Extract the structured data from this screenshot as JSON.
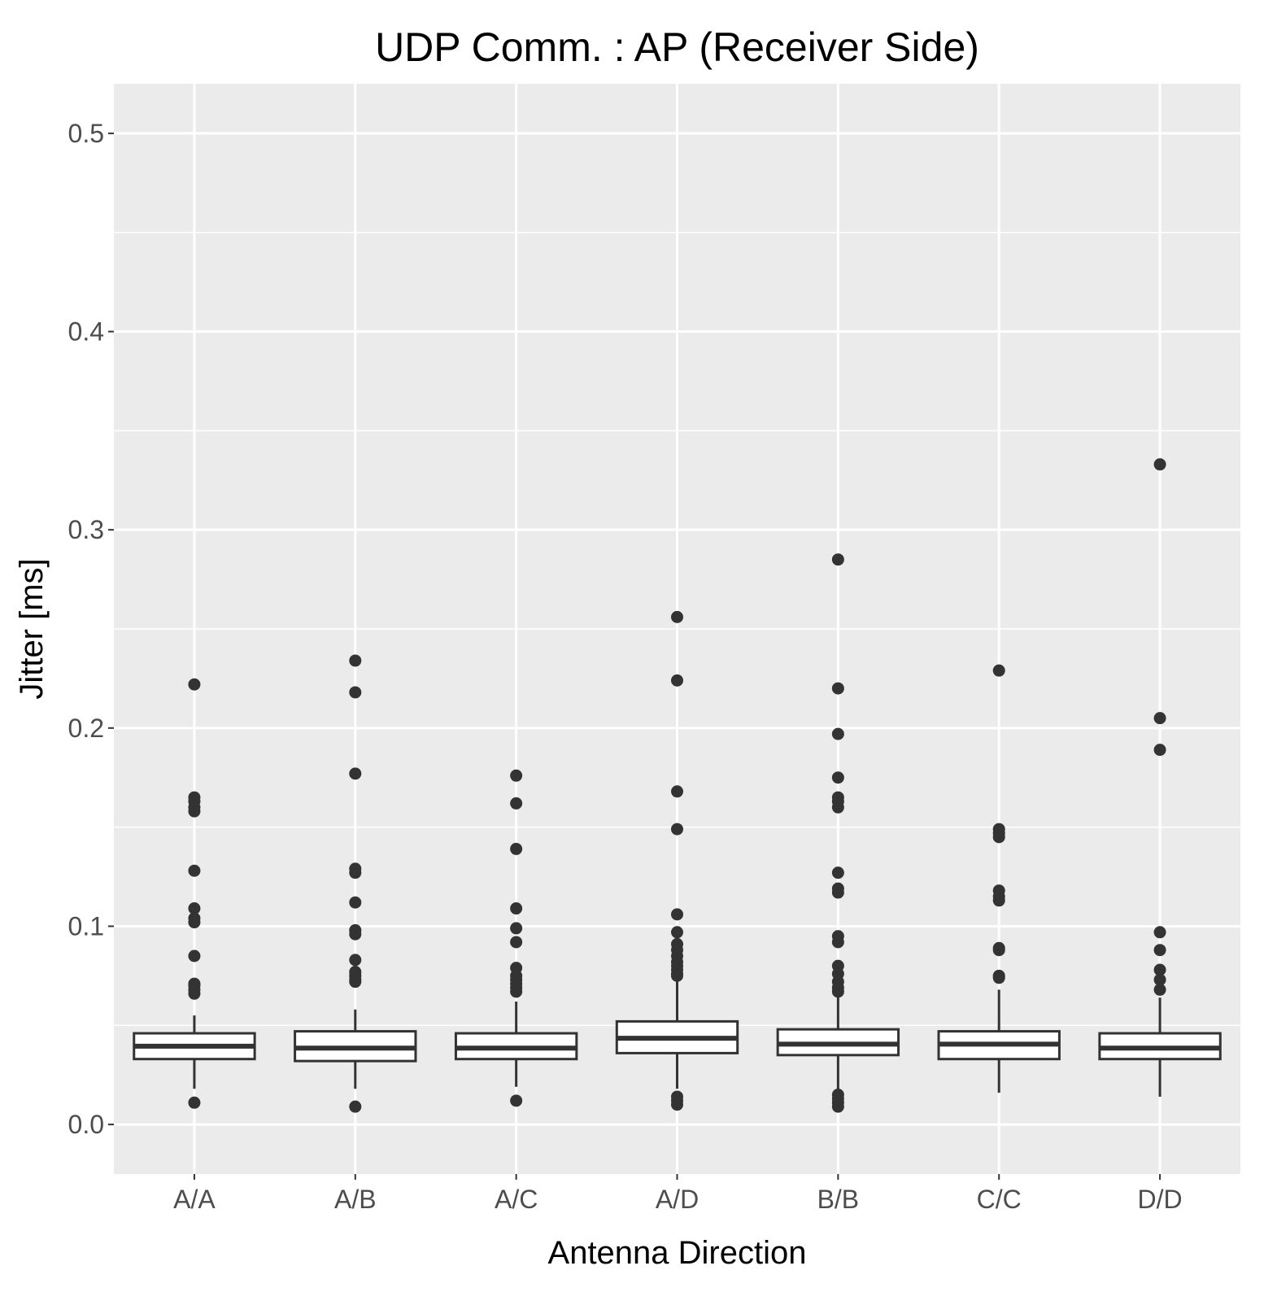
{
  "chart_data": {
    "type": "boxplot",
    "title": "UDP Comm. : AP (Receiver Side)",
    "xlabel": "Antenna Direction",
    "ylabel": "Jitter [ms]",
    "ylim": [
      -0.025,
      0.525
    ],
    "yticks": [
      0.0,
      0.1,
      0.2,
      0.3,
      0.4,
      0.5
    ],
    "ytick_labels": [
      "0.0",
      "0.1",
      "0.2",
      "0.3",
      "0.4",
      "0.5"
    ],
    "grid": true,
    "colors": {
      "panel_background": "#ebebeb",
      "grid": "#ffffff",
      "box_fill": "#ffffff",
      "box_line": "#333333",
      "outlier": "#333333"
    },
    "categories": [
      "A/A",
      "A/B",
      "A/C",
      "A/D",
      "B/B",
      "C/C",
      "D/D"
    ],
    "boxes": [
      {
        "category": "A/A",
        "lower_whisker": 0.018,
        "q1": 0.033,
        "median": 0.0395,
        "q3": 0.046,
        "upper_whisker": 0.055,
        "outliers": [
          0.222,
          0.165,
          0.163,
          0.16,
          0.158,
          0.128,
          0.109,
          0.104,
          0.102,
          0.085,
          0.071,
          0.07,
          0.068,
          0.066,
          0.011
        ]
      },
      {
        "category": "A/B",
        "lower_whisker": 0.018,
        "q1": 0.032,
        "median": 0.0385,
        "q3": 0.047,
        "upper_whisker": 0.058,
        "outliers": [
          0.234,
          0.218,
          0.177,
          0.129,
          0.127,
          0.112,
          0.098,
          0.096,
          0.083,
          0.077,
          0.075,
          0.073,
          0.072,
          0.009
        ]
      },
      {
        "category": "A/C",
        "lower_whisker": 0.019,
        "q1": 0.033,
        "median": 0.0385,
        "q3": 0.046,
        "upper_whisker": 0.062,
        "outliers": [
          0.176,
          0.162,
          0.139,
          0.109,
          0.099,
          0.092,
          0.079,
          0.075,
          0.073,
          0.071,
          0.069,
          0.067,
          0.012
        ]
      },
      {
        "category": "A/D",
        "lower_whisker": 0.018,
        "q1": 0.036,
        "median": 0.0435,
        "q3": 0.052,
        "upper_whisker": 0.073,
        "outliers": [
          0.256,
          0.224,
          0.168,
          0.149,
          0.106,
          0.097,
          0.091,
          0.088,
          0.085,
          0.082,
          0.08,
          0.078,
          0.076,
          0.075,
          0.014,
          0.012,
          0.01
        ]
      },
      {
        "category": "B/B",
        "lower_whisker": 0.017,
        "q1": 0.035,
        "median": 0.0405,
        "q3": 0.048,
        "upper_whisker": 0.066,
        "outliers": [
          0.285,
          0.22,
          0.197,
          0.175,
          0.165,
          0.163,
          0.16,
          0.127,
          0.119,
          0.117,
          0.095,
          0.092,
          0.08,
          0.076,
          0.072,
          0.069,
          0.067,
          0.015,
          0.013,
          0.011,
          0.009
        ]
      },
      {
        "category": "C/C",
        "lower_whisker": 0.016,
        "q1": 0.033,
        "median": 0.0405,
        "q3": 0.047,
        "upper_whisker": 0.068,
        "outliers": [
          0.229,
          0.149,
          0.147,
          0.145,
          0.118,
          0.115,
          0.113,
          0.089,
          0.088,
          0.075,
          0.074
        ]
      },
      {
        "category": "D/D",
        "lower_whisker": 0.014,
        "q1": 0.033,
        "median": 0.0385,
        "q3": 0.046,
        "upper_whisker": 0.064,
        "outliers": [
          0.333,
          0.205,
          0.189,
          0.097,
          0.088,
          0.078,
          0.073,
          0.068
        ]
      }
    ]
  }
}
